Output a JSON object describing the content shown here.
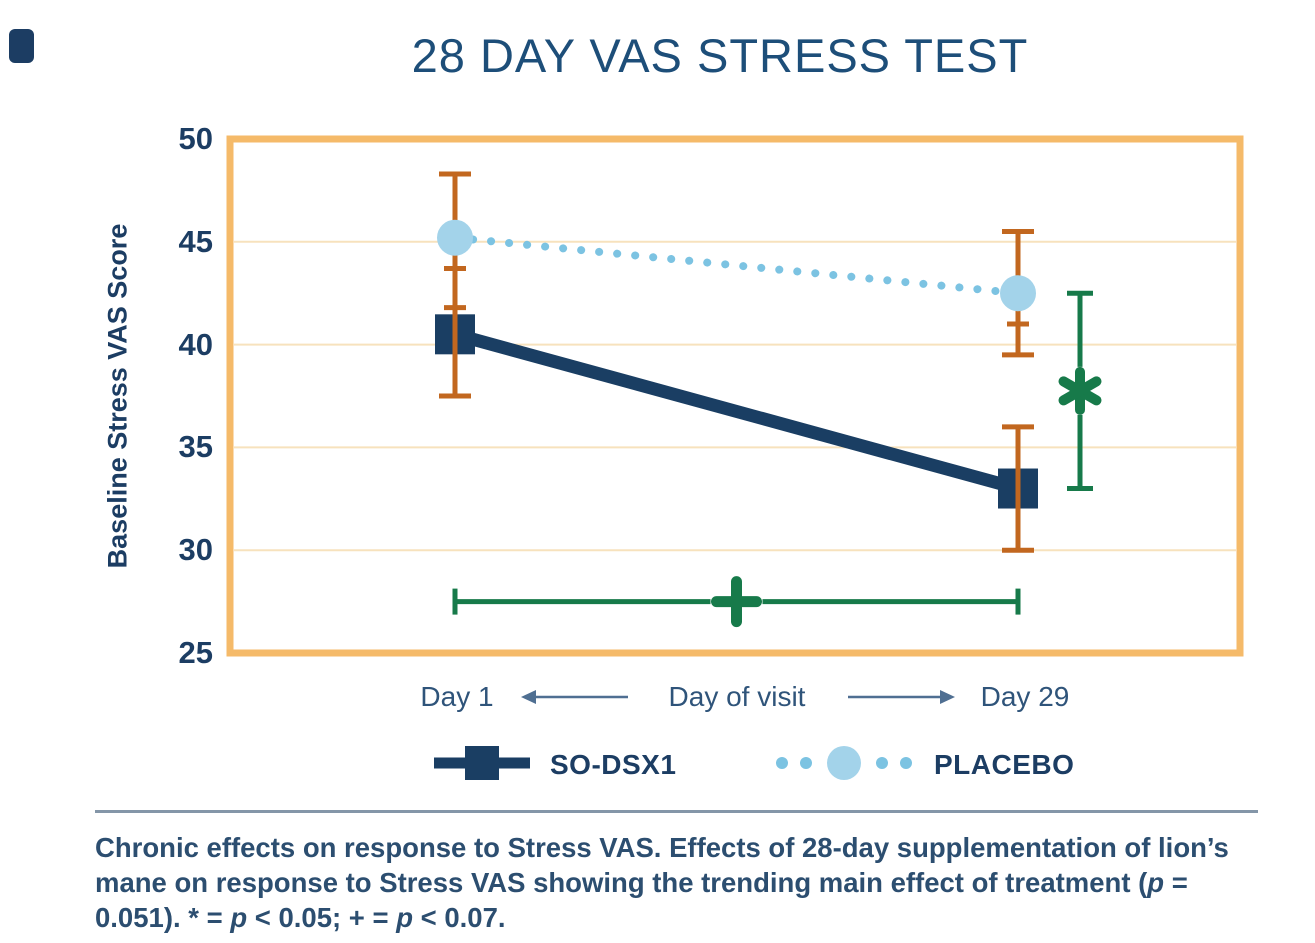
{
  "header": {
    "title": "28 DAY VAS STRESS TEST"
  },
  "chart_data": {
    "type": "line",
    "title": "28 DAY VAS STRESS TEST",
    "xlabel": "Day of visit",
    "ylabel": "Baseline Stress VAS Score",
    "x_categories": [
      "Day 1",
      "Day 29"
    ],
    "ylim": [
      25,
      50
    ],
    "yticks": [
      25,
      30,
      35,
      40,
      45,
      50
    ],
    "gridlines": [
      30,
      35,
      40,
      45
    ],
    "legend_position": "bottom",
    "series": [
      {
        "name": "SO-DSX1",
        "marker": "square",
        "line_style": "solid",
        "color": "#1a3e63",
        "marker_color": "#1a3e63",
        "values": [
          40.5,
          33.0
        ],
        "error_range": [
          [
            37.5,
            43.7
          ],
          [
            30.0,
            36.0
          ]
        ]
      },
      {
        "name": "PLACEBO",
        "marker": "circle",
        "line_style": "dotted",
        "color": "#7cc3e2",
        "marker_color": "#a3d3ea",
        "values": [
          45.2,
          42.5
        ],
        "error_range": [
          [
            41.8,
            48.3
          ],
          [
            39.5,
            45.5
          ]
        ]
      }
    ],
    "error_bars": [
      {
        "x": "Day 1",
        "from": 37.5,
        "to": 48.3,
        "wide_caps": [
          37.5,
          48.3
        ],
        "narrow_caps": [
          41.8,
          43.7
        ]
      },
      {
        "x": "Day 29",
        "from": 39.5,
        "to": 45.5,
        "wide_caps": [
          39.5,
          45.5
        ],
        "narrow_caps": [
          41.0
        ]
      },
      {
        "x": "Day 29",
        "from": 30.0,
        "to": 36.0,
        "wide_caps": [
          30.0,
          36.0
        ],
        "narrow_caps": []
      }
    ],
    "annotations": [
      {
        "id": "between-group-day29",
        "axis": "y",
        "symbol": "*",
        "meaning": "p < 0.05",
        "at_x": "Day 29",
        "span": [
          33.0,
          42.5
        ],
        "color": "#177a4a"
      },
      {
        "id": "within-group-time",
        "axis": "x",
        "symbol": "+",
        "meaning": "p < 0.07",
        "at_y": 27.5,
        "span": [
          "Day 1",
          "Day 29"
        ],
        "color": "#177a4a"
      }
    ],
    "colors": {
      "plot_border": "#f5ba69",
      "gridline": "#f7e2bd",
      "error_bar": "#c2671f",
      "significance": "#177a4a",
      "title_text": "#1d4e79",
      "tick_text": "#1c3d63",
      "axis_text": "#2f547a",
      "arrow": "#4f6f92",
      "divider": "#8496a8",
      "caption_text": "#2c4e70",
      "background": "#ffffff"
    }
  },
  "caption": {
    "part1": "Chronic effects on response to Stress VAS. Effects of 28-day supplementation of lion’s mane on response to Stress VAS showing the trending main effect of treatment (",
    "italic1": "p",
    "part2": " = 0.051). * = ",
    "italic2": "p",
    "part3": " < 0.05; + = ",
    "italic3": "p",
    "part4": " < 0.07."
  }
}
